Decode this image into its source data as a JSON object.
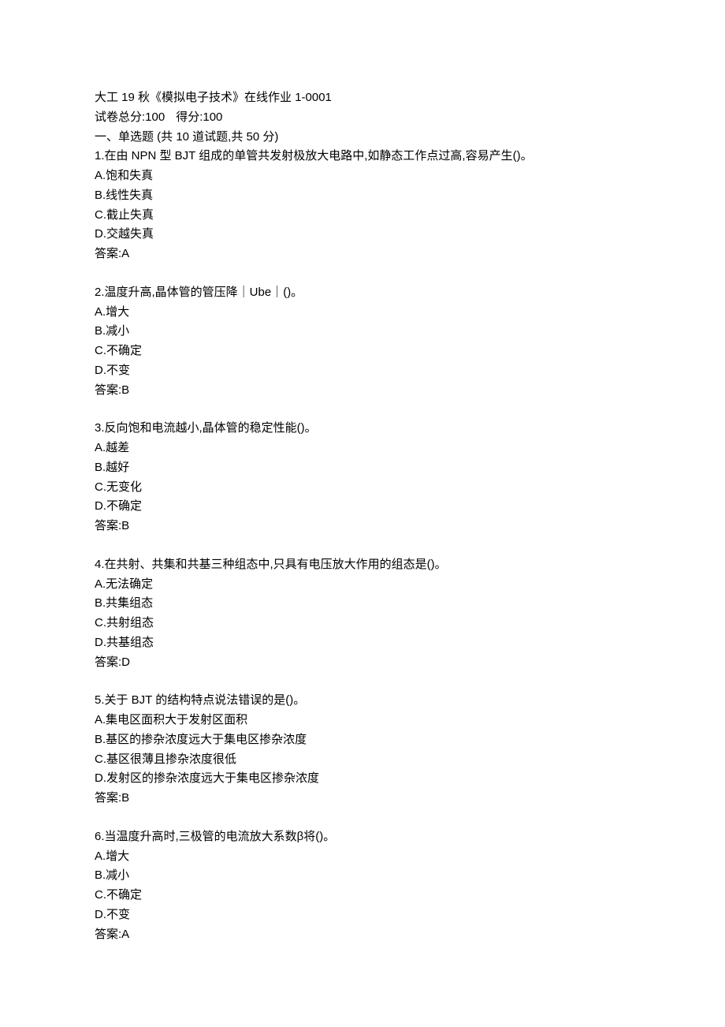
{
  "header": {
    "title": "大工 19 秋《模拟电子技术》在线作业 1-0001",
    "score_line_total_label": "试卷总分:",
    "score_line_total_value": "100",
    "score_line_got_label": "得分:",
    "score_line_got_value": "100",
    "section_heading": "一、单选题 (共 10 道试题,共 50 分)"
  },
  "questions": [
    {
      "stem": "1.在由 NPN 型 BJT 组成的单管共发射极放大电路中,如静态工作点过高,容易产生()。",
      "options": [
        "A.饱和失真",
        "B.线性失真",
        "C.截止失真",
        "D.交越失真"
      ],
      "answer_label": "答案:",
      "answer_value": "A"
    },
    {
      "stem": "2.温度升高,晶体管的管压降｜Ube｜()。",
      "options": [
        "A.增大",
        "B.减小",
        "C.不确定",
        "D.不变"
      ],
      "answer_label": "答案:",
      "answer_value": "B"
    },
    {
      "stem": "3.反向饱和电流越小,晶体管的稳定性能()。",
      "options": [
        "A.越差",
        "B.越好",
        "C.无变化",
        "D.不确定"
      ],
      "answer_label": "答案:",
      "answer_value": "B"
    },
    {
      "stem": "4.在共射、共集和共基三种组态中,只具有电压放大作用的组态是()。",
      "options": [
        "A.无法确定",
        "B.共集组态",
        "C.共射组态",
        "D.共基组态"
      ],
      "answer_label": "答案:",
      "answer_value": "D"
    },
    {
      "stem": "5.关于 BJT 的结构特点说法错误的是()。",
      "options": [
        "A.集电区面积大于发射区面积",
        "B.基区的掺杂浓度远大于集电区掺杂浓度",
        "C.基区很薄且掺杂浓度很低",
        "D.发射区的掺杂浓度远大于集电区掺杂浓度"
      ],
      "answer_label": "答案:",
      "answer_value": "B"
    },
    {
      "stem": "6.当温度升高时,三极管的电流放大系数β将()。",
      "options": [
        "A.增大",
        "B.减小",
        "C.不确定",
        "D.不变"
      ],
      "answer_label": "答案:",
      "answer_value": "A"
    }
  ]
}
